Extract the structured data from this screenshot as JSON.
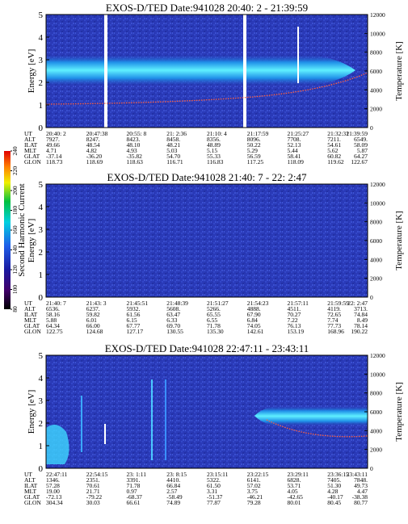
{
  "colorbar": {
    "label": "Second Harmonic Current",
    "lim": [
      80,
      240
    ],
    "ticks": [
      80,
      100,
      120,
      140,
      160,
      180,
      200,
      220,
      240
    ]
  },
  "chart_data": [
    {
      "type": "spectrogram",
      "title": "EXOS-D/TED   Date:941028  20:40: 2 - 21:39:59",
      "ylabel": "Energy [eV]",
      "y2label": "Temperature [K]",
      "ylim": [
        0,
        5
      ],
      "yticks": [
        0,
        1,
        2,
        3,
        4,
        5
      ],
      "y2lim": [
        0,
        12000
      ],
      "y2ticks": [
        0,
        2000,
        4000,
        6000,
        8000,
        10000,
        12000
      ],
      "table": [
        {
          "label": "UT",
          "values": [
            "20:40: 2",
            "20:47:38",
            "20:55: 8",
            "21: 2:36",
            "21:10: 4",
            "21:17:59",
            "21:25:27",
            "21:32:31",
            "21:39:59"
          ]
        },
        {
          "label": "ALT",
          "values": [
            "7927.",
            "8247.",
            "8423.",
            "8458.",
            "8356.",
            "8096.",
            "7708.",
            "7211.",
            "6549."
          ]
        },
        {
          "label": "ILAT",
          "values": [
            "49.66",
            "48.54",
            "48.10",
            "48.21",
            "48.89",
            "50.22",
            "52.13",
            "54.61",
            "58.09"
          ]
        },
        {
          "label": "MLT",
          "values": [
            "4.71",
            "4.82",
            "4.93",
            "5.03",
            "5.15",
            "5.29",
            "5.44",
            "5.62",
            "5.87"
          ]
        },
        {
          "label": "GLAT",
          "values": [
            "-37.14",
            "-36.20",
            "-35.82",
            "54.70",
            "55.33",
            "56.59",
            "58.41",
            "60.82",
            "64.27"
          ]
        },
        {
          "label": "GLON",
          "values": [
            "118.73",
            "118.69",
            "118.63",
            "116.71",
            "116.83",
            "117.25",
            "118.09",
            "119.62",
            "122.67"
          ]
        }
      ]
    },
    {
      "type": "spectrogram",
      "title": "EXOS-D/TED   Date:941028  21:40: 7 - 22: 2:47",
      "ylabel": "Energy [eV]",
      "y2label": "Temperature [K]",
      "ylim": [
        0,
        5
      ],
      "yticks": [
        0,
        1,
        2,
        3,
        4,
        5
      ],
      "y2lim": [
        0,
        12000
      ],
      "y2ticks": [
        0,
        2000,
        4000,
        6000,
        8000,
        10000,
        12000
      ],
      "table": [
        {
          "label": "UT",
          "values": [
            "21:40: 7",
            "21:43: 3",
            "21:45:51",
            "21:48:39",
            "21:51:27",
            "21:54:23",
            "21:57:11",
            "21:59:59",
            "22: 2:47"
          ]
        },
        {
          "label": "ALT",
          "values": [
            "6536.",
            "6237.",
            "5932.",
            "5608.",
            "5266.",
            "4888.",
            "4511.",
            "4119.",
            "3713."
          ]
        },
        {
          "label": "ILAT",
          "values": [
            "58.16",
            "59.82",
            "61.56",
            "63.47",
            "65.55",
            "67.90",
            "70.27",
            "72.65",
            "74.84"
          ]
        },
        {
          "label": "MLT",
          "values": [
            "5.88",
            "6.01",
            "6.15",
            "6.33",
            "6.55",
            "6.84",
            "7.22",
            "7.74",
            "8.49"
          ]
        },
        {
          "label": "GLAT",
          "values": [
            "64.34",
            "66.00",
            "67.77",
            "69.70",
            "71.78",
            "74.05",
            "76.13",
            "77.73",
            "78.14"
          ]
        },
        {
          "label": "GLON",
          "values": [
            "122.75",
            "124.68",
            "127.17",
            "130.55",
            "135.30",
            "142.61",
            "153.19",
            "168.96",
            "190.22"
          ]
        }
      ]
    },
    {
      "type": "spectrogram",
      "title": "EXOS-D/TED   Date:941028  22:47:11 - 23:43:11",
      "ylabel": "Energy [eV]",
      "y2label": "Temperature [K]",
      "ylim": [
        0,
        5
      ],
      "yticks": [
        0,
        1,
        2,
        3,
        4,
        5
      ],
      "y2lim": [
        0,
        12000
      ],
      "y2ticks": [
        0,
        2000,
        4000,
        6000,
        8000,
        10000,
        12000
      ],
      "table": [
        {
          "label": "UT",
          "values": [
            "22:47:11",
            "22:54:15",
            "23: 1:11",
            "23: 8:15",
            "23:15:11",
            "23:22:15",
            "23:29:11",
            "23:36:15",
            "23:43:11"
          ]
        },
        {
          "label": "ALT",
          "values": [
            "1346.",
            "2351.",
            "3391.",
            "4410.",
            "5322.",
            "6141.",
            "6828.",
            "7405.",
            "7848."
          ]
        },
        {
          "label": "ILAT",
          "values": [
            "57.28",
            "70.61",
            "71.78",
            "66.84",
            "61.50",
            "57.02",
            "53.71",
            "51.30",
            "49.73"
          ]
        },
        {
          "label": "MLT",
          "values": [
            "19.00",
            "21.71",
            "0.97",
            "2.57",
            "3.31",
            "3.75",
            "4.05",
            "4.28",
            "4.47"
          ]
        },
        {
          "label": "GLAT",
          "values": [
            "-72.13",
            "-79.22",
            "-68.37",
            "-58.49",
            "-51.37",
            "-46.21",
            "-42.65",
            "-40.17",
            "-38.38"
          ]
        },
        {
          "label": "GLON",
          "values": [
            "304.34",
            "30.03",
            "66.61",
            "74.89",
            "77.87",
            "79.28",
            "80.01",
            "80.45",
            "80.77"
          ]
        }
      ]
    }
  ]
}
